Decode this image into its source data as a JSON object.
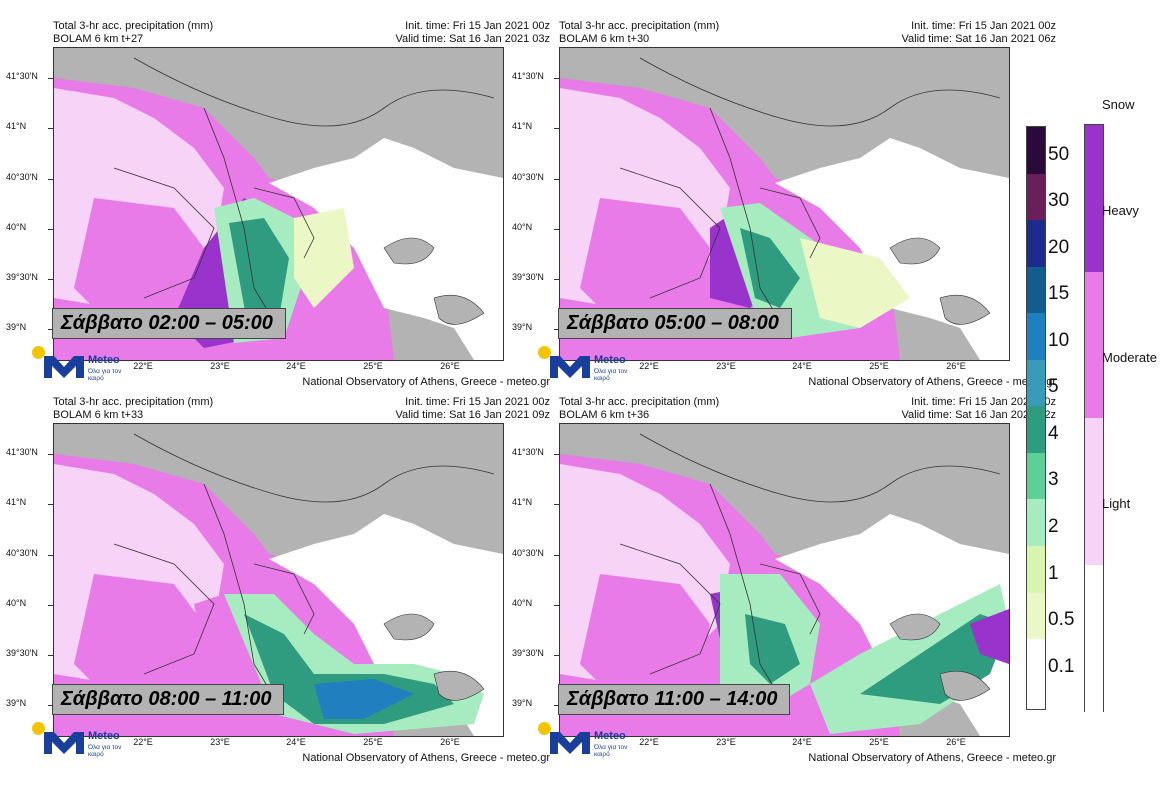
{
  "panels": [
    {
      "title": "Total 3-hr acc. precipitation (mm)",
      "model": "BOLAM 6 km t+27",
      "init": "Init. time: Fri 15 Jan 2021 00z",
      "valid": "Valid time: Sat 16 Jan 2021 03z",
      "day_label": "Σάββατο 02:00 – 05:00"
    },
    {
      "title": "Total 3-hr acc. precipitation (mm)",
      "model": "BOLAM 6 km t+30",
      "init": "Init. time: Fri 15 Jan 2021 00z",
      "valid": "Valid time: Sat 16 Jan 2021 06z",
      "day_label": "Σάββατο 05:00 – 08:00"
    },
    {
      "title": "Total 3-hr acc. precipitation (mm)",
      "model": "BOLAM 6 km t+33",
      "init": "Init. time: Fri 15 Jan 2021 00z",
      "valid": "Valid time: Sat 16 Jan 2021 09z",
      "day_label": "Σάββατο 08:00 – 11:00"
    },
    {
      "title": "Total 3-hr acc. precipitation (mm)",
      "model": "BOLAM 6 km t+36",
      "init": "Init. time: Fri 15 Jan 2021 00z",
      "valid": "Valid time: Sat 16 Jan 2021 12z",
      "day_label": "Σάββατο 11:00 – 14:00"
    }
  ],
  "lat_labels": [
    "41°30'N",
    "41°N",
    "40°30'N",
    "40°N",
    "39°30'N",
    "39°N"
  ],
  "lon_labels": [
    "22°E",
    "23°E",
    "24°E",
    "25°E",
    "26°E"
  ],
  "credit": "National Observatory of Athens, Greece - meteo.gr",
  "logo": {
    "brand": "Meteo",
    "tagline": "Όλα για τον καιρό"
  },
  "rain_scale": {
    "labels": [
      "50",
      "30",
      "20",
      "15",
      "10",
      "5",
      "4",
      "3",
      "2",
      "1",
      "0.5",
      "0.1"
    ],
    "colors": [
      "#2a0a3a",
      "#6a1f5a",
      "#1e2b8c",
      "#135d8e",
      "#1f7fbf",
      "#3a9bb8",
      "#2f9c7f",
      "#5dcf97",
      "#a6ecc0",
      "#d8f5b0",
      "#ecf7c6",
      "#ffffff"
    ]
  },
  "snow_scale": {
    "title": "Snow",
    "labels": [
      "Heavy",
      "Moderate",
      "Light"
    ],
    "colors": [
      "#9933cc",
      "#e87be8",
      "#f7d3f7",
      "#ffffff"
    ]
  }
}
